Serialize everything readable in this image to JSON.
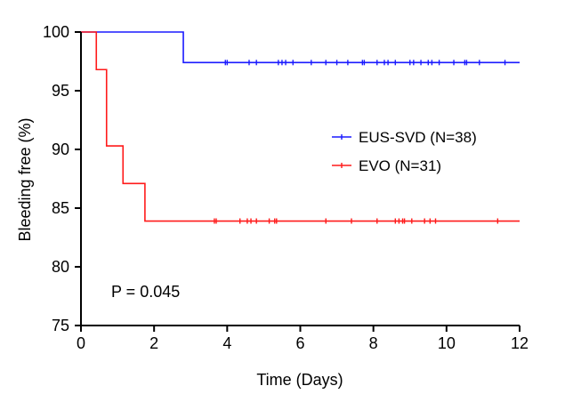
{
  "chart_data": {
    "type": "line",
    "subtype": "kaplan-meier",
    "title": "",
    "xlabel": "Time  (Days)",
    "ylabel": "Bleeding free (%)",
    "xlim": [
      0,
      12
    ],
    "ylim": [
      75,
      100
    ],
    "xticks": [
      0,
      2,
      4,
      6,
      8,
      10,
      12
    ],
    "yticks": [
      75,
      80,
      85,
      90,
      95,
      100
    ],
    "grid": false,
    "legend_position": "right-middle",
    "annotation": "P = 0.045",
    "series": [
      {
        "name": "EUS-SVD (N=38)",
        "color": "#1a1aff",
        "steps": [
          {
            "x": 0,
            "y": 100
          },
          {
            "x": 2.8,
            "y": 97.4
          },
          {
            "x": 12,
            "y": 97.4
          }
        ],
        "censored": [
          3.95,
          4.0,
          4.6,
          4.8,
          5.4,
          5.5,
          5.6,
          5.8,
          6.3,
          6.7,
          7.0,
          7.3,
          7.7,
          7.75,
          8.1,
          8.3,
          8.4,
          8.6,
          9.0,
          9.1,
          9.3,
          9.5,
          9.6,
          9.8,
          10.2,
          10.5,
          10.55,
          10.9,
          11.6
        ]
      },
      {
        "name": "EVO (N=31)",
        "color": "#ff1a1a",
        "steps": [
          {
            "x": 0,
            "y": 100
          },
          {
            "x": 0.42,
            "y": 96.8
          },
          {
            "x": 0.7,
            "y": 90.3
          },
          {
            "x": 1.15,
            "y": 87.1
          },
          {
            "x": 1.75,
            "y": 83.9
          },
          {
            "x": 12,
            "y": 83.9
          }
        ],
        "censored": [
          3.65,
          3.7,
          4.35,
          4.55,
          4.65,
          4.8,
          5.15,
          5.3,
          5.35,
          6.7,
          7.4,
          8.1,
          8.6,
          8.7,
          8.8,
          8.85,
          9.05,
          9.4,
          9.55,
          9.7,
          11.4
        ]
      }
    ]
  }
}
